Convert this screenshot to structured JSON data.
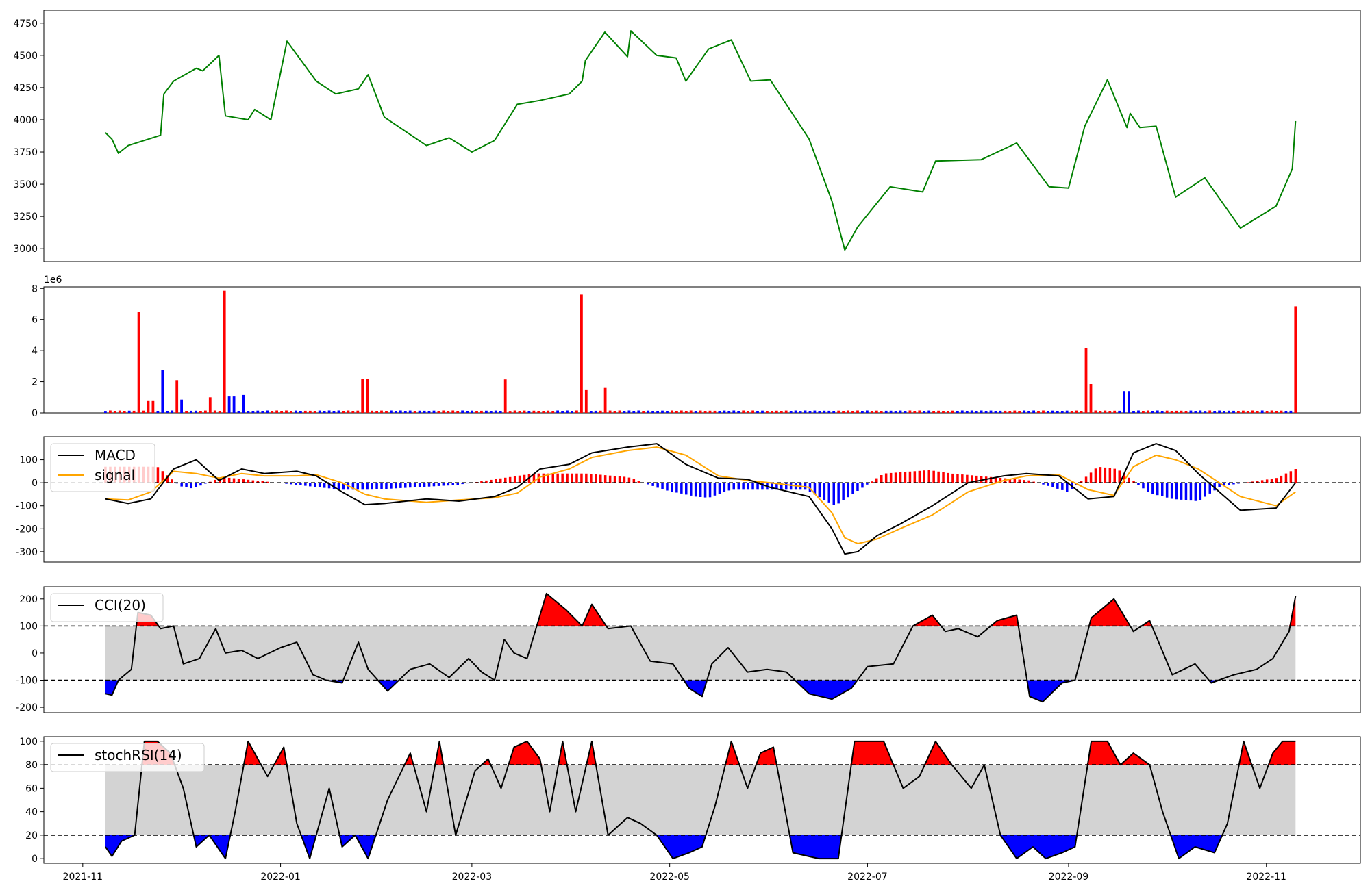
{
  "figure": {
    "x_tick_labels": [
      "2021-11",
      "2022-01",
      "2022-03",
      "2022-05",
      "2022-07",
      "2022-09",
      "2022-11"
    ],
    "x_tick_dates": [
      "2021-11-01",
      "2022-01-01",
      "2022-03-01",
      "2022-05-01",
      "2022-07-01",
      "2022-09-01",
      "2022-11-01"
    ],
    "x_range": [
      "2021-10-20",
      "2022-11-30"
    ],
    "colors": {
      "price": "#008000",
      "up": "#ff0000",
      "down": "#0000ff",
      "macd": "#000000",
      "signal": "#ffa500",
      "band": "#d3d3d3"
    }
  },
  "chart_data": [
    {
      "type": "line",
      "panel": "price",
      "ylim": [
        2900,
        4850
      ],
      "y_ticks": [
        3000,
        3250,
        3500,
        3750,
        4000,
        4250,
        4500,
        4750
      ],
      "x": [
        "2021-11-08",
        "2021-11-10",
        "2021-11-12",
        "2021-11-15",
        "2021-11-25",
        "2021-11-26",
        "2021-11-29",
        "2021-12-06",
        "2021-12-08",
        "2021-12-13",
        "2021-12-15",
        "2021-12-22",
        "2021-12-24",
        "2021-12-29",
        "2022-01-03",
        "2022-01-12",
        "2022-01-18",
        "2022-01-25",
        "2022-01-28",
        "2022-02-02",
        "2022-02-15",
        "2022-02-22",
        "2022-03-01",
        "2022-03-08",
        "2022-03-15",
        "2022-03-22",
        "2022-03-31",
        "2022-04-04",
        "2022-04-05",
        "2022-04-11",
        "2022-04-18",
        "2022-04-19",
        "2022-04-27",
        "2022-05-03",
        "2022-05-06",
        "2022-05-13",
        "2022-05-20",
        "2022-05-26",
        "2022-06-01",
        "2022-06-13",
        "2022-06-20",
        "2022-06-24",
        "2022-06-28",
        "2022-07-08",
        "2022-07-18",
        "2022-07-22",
        "2022-08-05",
        "2022-08-16",
        "2022-08-26",
        "2022-09-01",
        "2022-09-06",
        "2022-09-13",
        "2022-09-19",
        "2022-09-20",
        "2022-09-23",
        "2022-09-28",
        "2022-10-04",
        "2022-10-13",
        "2022-10-24",
        "2022-11-04",
        "2022-11-09",
        "2022-11-10"
      ],
      "y": [
        3900,
        3850,
        3740,
        3800,
        3880,
        4200,
        4300,
        4400,
        4380,
        4500,
        4030,
        4000,
        4080,
        4000,
        4610,
        4300,
        4200,
        4240,
        4350,
        4020,
        3800,
        3860,
        3750,
        3840,
        4120,
        4150,
        4200,
        4300,
        4460,
        4680,
        4490,
        4690,
        4500,
        4480,
        4300,
        4550,
        4620,
        4300,
        4310,
        3850,
        3370,
        2990,
        3170,
        3480,
        3440,
        3680,
        3690,
        3820,
        3480,
        3470,
        3950,
        4310,
        3940,
        4050,
        3940,
        3950,
        3400,
        3550,
        3160,
        3330,
        3620,
        3990
      ]
    },
    {
      "type": "bar",
      "panel": "volume",
      "scale_label": "1e6",
      "ylim": [
        0,
        8.1
      ],
      "y_ticks": [
        0,
        2,
        4,
        6,
        8
      ],
      "x_range": [
        "2021-11-08",
        "2022-11-10"
      ],
      "n_bars": 251,
      "baseline_value": 0.12,
      "spikes": [
        {
          "date": "2021-11-18",
          "value": 6.5,
          "dir": "up"
        },
        {
          "date": "2021-11-22",
          "value": 0.8,
          "dir": "up"
        },
        {
          "date": "2021-11-26",
          "value": 2.75,
          "dir": "down"
        },
        {
          "date": "2021-11-30",
          "value": 2.1,
          "dir": "up"
        },
        {
          "date": "2021-12-02",
          "value": 0.85,
          "dir": "down"
        },
        {
          "date": "2021-12-10",
          "value": 1.0,
          "dir": "up"
        },
        {
          "date": "2021-12-15",
          "value": 7.85,
          "dir": "up"
        },
        {
          "date": "2021-12-17",
          "value": 1.05,
          "dir": "down"
        },
        {
          "date": "2021-12-20",
          "value": 1.15,
          "dir": "down"
        },
        {
          "date": "2022-01-27",
          "value": 2.2,
          "dir": "up"
        },
        {
          "date": "2022-03-11",
          "value": 2.15,
          "dir": "up"
        },
        {
          "date": "2022-04-04",
          "value": 7.6,
          "dir": "up"
        },
        {
          "date": "2022-04-05",
          "value": 1.5,
          "dir": "up"
        },
        {
          "date": "2022-04-11",
          "value": 1.6,
          "dir": "up"
        },
        {
          "date": "2022-09-07",
          "value": 4.15,
          "dir": "up"
        },
        {
          "date": "2022-09-08",
          "value": 1.85,
          "dir": "up"
        },
        {
          "date": "2022-09-19",
          "value": 1.4,
          "dir": "down"
        },
        {
          "date": "2022-11-10",
          "value": 6.85,
          "dir": "up"
        }
      ]
    },
    {
      "type": "line",
      "panel": "macd",
      "ylim": [
        -345,
        200
      ],
      "y_ticks": [
        -300,
        -200,
        -100,
        0,
        100
      ],
      "zero_line": 0,
      "legend_position": "upper-left",
      "series": [
        {
          "name": "MACD",
          "x": [
            "2021-11-08",
            "2021-11-15",
            "2021-11-22",
            "2021-11-29",
            "2021-12-06",
            "2021-12-13",
            "2021-12-20",
            "2021-12-27",
            "2022-01-06",
            "2022-01-12",
            "2022-01-20",
            "2022-01-27",
            "2022-02-02",
            "2022-02-15",
            "2022-02-25",
            "2022-03-08",
            "2022-03-15",
            "2022-03-22",
            "2022-03-31",
            "2022-04-07",
            "2022-04-18",
            "2022-04-27",
            "2022-05-06",
            "2022-05-16",
            "2022-05-25",
            "2022-06-01",
            "2022-06-13",
            "2022-06-20",
            "2022-06-24",
            "2022-06-28",
            "2022-07-04",
            "2022-07-11",
            "2022-07-21",
            "2022-08-01",
            "2022-08-12",
            "2022-08-19",
            "2022-08-29",
            "2022-09-07",
            "2022-09-15",
            "2022-09-21",
            "2022-09-28",
            "2022-10-04",
            "2022-10-11",
            "2022-10-24",
            "2022-11-04",
            "2022-11-10"
          ],
          "y": [
            -70,
            -90,
            -70,
            60,
            100,
            10,
            60,
            40,
            50,
            30,
            -40,
            -95,
            -90,
            -70,
            -80,
            -60,
            -20,
            60,
            80,
            130,
            155,
            170,
            80,
            20,
            15,
            -20,
            -60,
            -200,
            -310,
            -300,
            -230,
            -180,
            -100,
            0,
            30,
            40,
            30,
            -70,
            -60,
            130,
            170,
            140,
            40,
            -120,
            -110,
            0
          ]
        },
        {
          "name": "signal",
          "x": [
            "2021-11-08",
            "2021-11-15",
            "2021-11-22",
            "2021-11-29",
            "2021-12-06",
            "2021-12-13",
            "2021-12-20",
            "2021-12-27",
            "2022-01-06",
            "2022-01-12",
            "2022-01-20",
            "2022-01-27",
            "2022-02-02",
            "2022-02-15",
            "2022-02-25",
            "2022-03-08",
            "2022-03-15",
            "2022-03-22",
            "2022-03-31",
            "2022-04-07",
            "2022-04-18",
            "2022-04-27",
            "2022-05-06",
            "2022-05-16",
            "2022-05-25",
            "2022-06-01",
            "2022-06-13",
            "2022-06-20",
            "2022-06-24",
            "2022-06-28",
            "2022-07-04",
            "2022-07-11",
            "2022-07-21",
            "2022-08-01",
            "2022-08-12",
            "2022-08-19",
            "2022-08-29",
            "2022-09-07",
            "2022-09-15",
            "2022-09-21",
            "2022-09-28",
            "2022-10-04",
            "2022-10-11",
            "2022-10-24",
            "2022-11-04",
            "2022-11-10"
          ],
          "y": [
            -70,
            -75,
            -40,
            50,
            40,
            20,
            40,
            30,
            30,
            35,
            0,
            -50,
            -70,
            -85,
            -75,
            -65,
            -45,
            25,
            60,
            110,
            140,
            155,
            120,
            30,
            10,
            0,
            -20,
            -130,
            -240,
            -265,
            -245,
            -200,
            -140,
            -40,
            10,
            30,
            35,
            -30,
            -55,
            70,
            120,
            100,
            60,
            -60,
            -100,
            -40
          ]
        }
      ],
      "histogram": [
        {
          "x": "2021-11-24",
          "y": 70
        },
        {
          "x": "2021-12-01",
          "y": -15
        },
        {
          "x": "2021-12-05",
          "y": -25
        },
        {
          "x": "2021-12-14",
          "y": 25
        },
        {
          "x": "2021-12-24",
          "y": 10
        },
        {
          "x": "2022-01-20",
          "y": -30
        },
        {
          "x": "2022-01-29",
          "y": -30
        },
        {
          "x": "2022-02-24",
          "y": -10
        },
        {
          "x": "2022-03-20",
          "y": 40
        },
        {
          "x": "2022-04-05",
          "y": 40
        },
        {
          "x": "2022-04-18",
          "y": 25
        },
        {
          "x": "2022-04-29",
          "y": -30
        },
        {
          "x": "2022-05-09",
          "y": -60
        },
        {
          "x": "2022-05-13",
          "y": -65
        },
        {
          "x": "2022-05-20",
          "y": -30
        },
        {
          "x": "2022-06-12",
          "y": -30
        },
        {
          "x": "2022-06-21",
          "y": -100
        },
        {
          "x": "2022-07-06",
          "y": 40
        },
        {
          "x": "2022-07-20",
          "y": 55
        },
        {
          "x": "2022-07-27",
          "y": 40
        },
        {
          "x": "2022-08-20",
          "y": 10
        },
        {
          "x": "2022-09-01",
          "y": -40
        },
        {
          "x": "2022-09-10",
          "y": 70
        },
        {
          "x": "2022-09-16",
          "y": 60
        },
        {
          "x": "2022-09-26",
          "y": -45
        },
        {
          "x": "2022-10-03",
          "y": -70
        },
        {
          "x": "2022-10-11",
          "y": -80
        },
        {
          "x": "2022-10-18",
          "y": -15
        },
        {
          "x": "2022-11-04",
          "y": 20
        },
        {
          "x": "2022-11-10",
          "y": 60
        }
      ]
    },
    {
      "type": "line",
      "panel": "cci",
      "ylim": [
        -220,
        245
      ],
      "y_ticks": [
        -200,
        -100,
        0,
        100,
        200
      ],
      "thresholds": [
        -100,
        100
      ],
      "legend_position": "upper-left",
      "series": [
        {
          "name": "CCI(20)",
          "x": [
            "2021-11-08",
            "2021-11-10",
            "2021-11-12",
            "2021-11-16",
            "2021-11-18",
            "2021-11-22",
            "2021-11-25",
            "2021-11-29",
            "2021-12-02",
            "2021-12-07",
            "2021-12-12",
            "2021-12-15",
            "2021-12-20",
            "2021-12-25",
            "2022-01-01",
            "2022-01-06",
            "2022-01-11",
            "2022-01-15",
            "2022-01-20",
            "2022-01-25",
            "2022-01-28",
            "2022-02-03",
            "2022-02-10",
            "2022-02-16",
            "2022-02-22",
            "2022-02-28",
            "2022-03-04",
            "2022-03-08",
            "2022-03-11",
            "2022-03-14",
            "2022-03-18",
            "2022-03-24",
            "2022-03-30",
            "2022-04-04",
            "2022-04-07",
            "2022-04-12",
            "2022-04-19",
            "2022-04-25",
            "2022-05-02",
            "2022-05-07",
            "2022-05-11",
            "2022-05-14",
            "2022-05-19",
            "2022-05-25",
            "2022-05-31",
            "2022-06-06",
            "2022-06-13",
            "2022-06-20",
            "2022-06-26",
            "2022-07-01",
            "2022-07-09",
            "2022-07-15",
            "2022-07-21",
            "2022-07-25",
            "2022-07-29",
            "2022-08-04",
            "2022-08-10",
            "2022-08-16",
            "2022-08-20",
            "2022-08-24",
            "2022-08-30",
            "2022-09-03",
            "2022-09-08",
            "2022-09-15",
            "2022-09-21",
            "2022-09-26",
            "2022-10-03",
            "2022-10-10",
            "2022-10-15",
            "2022-10-22",
            "2022-10-29",
            "2022-11-03",
            "2022-11-08",
            "2022-11-10"
          ],
          "y": [
            -150,
            -155,
            -100,
            -60,
            150,
            140,
            90,
            100,
            -40,
            -20,
            90,
            0,
            10,
            -20,
            20,
            40,
            -80,
            -100,
            -110,
            40,
            -60,
            -140,
            -60,
            -40,
            -90,
            -20,
            -70,
            -100,
            50,
            0,
            -20,
            220,
            160,
            100,
            180,
            90,
            100,
            -30,
            -40,
            -130,
            -160,
            -40,
            20,
            -70,
            -60,
            -70,
            -150,
            -170,
            -130,
            -50,
            -40,
            100,
            140,
            80,
            90,
            60,
            120,
            140,
            -160,
            -180,
            -110,
            -100,
            130,
            200,
            80,
            120,
            -80,
            -40,
            -110,
            -80,
            -60,
            -20,
            80,
            210
          ]
        }
      ]
    },
    {
      "type": "line",
      "panel": "stochrsi",
      "ylim": [
        -4,
        104
      ],
      "y_ticks": [
        0,
        20,
        40,
        60,
        80,
        100
      ],
      "thresholds": [
        20,
        80
      ],
      "legend_position": "upper-left",
      "series": [
        {
          "name": "stochRSI(14)",
          "x": [
            "2021-11-08",
            "2021-11-10",
            "2021-11-13",
            "2021-11-17",
            "2021-11-20",
            "2021-11-24",
            "2021-11-28",
            "2021-12-02",
            "2021-12-06",
            "2021-12-10",
            "2021-12-15",
            "2021-12-18",
            "2021-12-22",
            "2021-12-28",
            "2022-01-02",
            "2022-01-06",
            "2022-01-10",
            "2022-01-16",
            "2022-01-20",
            "2022-01-24",
            "2022-01-28",
            "2022-02-03",
            "2022-02-10",
            "2022-02-15",
            "2022-02-19",
            "2022-02-24",
            "2022-03-02",
            "2022-03-06",
            "2022-03-10",
            "2022-03-14",
            "2022-03-18",
            "2022-03-22",
            "2022-03-25",
            "2022-03-29",
            "2022-04-02",
            "2022-04-07",
            "2022-04-12",
            "2022-04-18",
            "2022-04-22",
            "2022-04-27",
            "2022-05-02",
            "2022-05-07",
            "2022-05-11",
            "2022-05-15",
            "2022-05-20",
            "2022-05-25",
            "2022-05-29",
            "2022-06-02",
            "2022-06-08",
            "2022-06-16",
            "2022-06-22",
            "2022-06-27",
            "2022-07-01",
            "2022-07-06",
            "2022-07-12",
            "2022-07-17",
            "2022-07-22",
            "2022-07-27",
            "2022-08-02",
            "2022-08-06",
            "2022-08-11",
            "2022-08-16",
            "2022-08-21",
            "2022-08-25",
            "2022-08-30",
            "2022-09-03",
            "2022-09-08",
            "2022-09-13",
            "2022-09-17",
            "2022-09-21",
            "2022-09-26",
            "2022-09-30",
            "2022-10-05",
            "2022-10-10",
            "2022-10-16",
            "2022-10-20",
            "2022-10-25",
            "2022-10-30",
            "2022-11-03",
            "2022-11-06",
            "2022-11-10"
          ],
          "y": [
            10,
            2,
            15,
            20,
            100,
            100,
            90,
            60,
            10,
            20,
            0,
            40,
            100,
            70,
            95,
            30,
            0,
            60,
            10,
            20,
            0,
            50,
            90,
            40,
            100,
            20,
            75,
            85,
            60,
            95,
            100,
            85,
            40,
            100,
            40,
            100,
            20,
            35,
            30,
            20,
            0,
            5,
            10,
            45,
            100,
            60,
            90,
            95,
            5,
            0,
            0,
            100,
            100,
            100,
            60,
            70,
            100,
            80,
            60,
            80,
            20,
            0,
            10,
            0,
            5,
            10,
            100,
            100,
            80,
            90,
            80,
            40,
            0,
            10,
            5,
            30,
            100,
            60,
            90,
            100,
            100
          ]
        }
      ]
    }
  ]
}
